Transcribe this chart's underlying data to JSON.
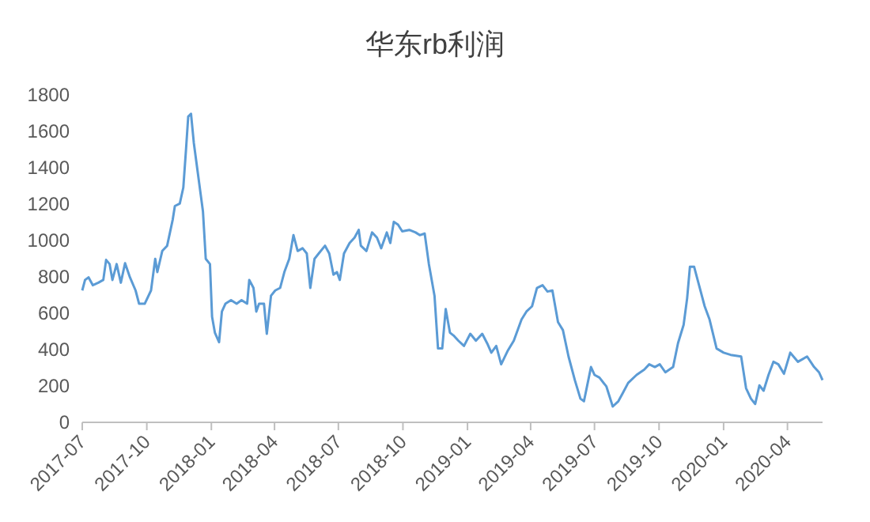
{
  "chart_data": {
    "type": "line",
    "title": "华东rb利润",
    "x": [
      "2017-07-01",
      "2017-07-05",
      "2017-07-10",
      "2017-07-16",
      "2017-07-24",
      "2017-07-31",
      "2017-08-04",
      "2017-08-09",
      "2017-08-13",
      "2017-08-19",
      "2017-08-25",
      "2017-08-31",
      "2017-09-07",
      "2017-09-15",
      "2017-09-20",
      "2017-09-28",
      "2017-10-07",
      "2017-10-13",
      "2017-10-16",
      "2017-10-23",
      "2017-10-30",
      "2017-11-07",
      "2017-11-10",
      "2017-11-17",
      "2017-11-22",
      "2017-11-26",
      "2017-11-29",
      "2017-12-03",
      "2017-12-07",
      "2017-12-12",
      "2017-12-20",
      "2017-12-24",
      "2017-12-30",
      "2018-01-02",
      "2018-01-06",
      "2018-01-12",
      "2018-01-16",
      "2018-01-21",
      "2018-01-29",
      "2018-02-06",
      "2018-02-13",
      "2018-02-21",
      "2018-02-24",
      "2018-03-02",
      "2018-03-06",
      "2018-03-10",
      "2018-03-17",
      "2018-03-21",
      "2018-03-27",
      "2018-04-02",
      "2018-04-09",
      "2018-04-15",
      "2018-04-22",
      "2018-04-28",
      "2018-05-04",
      "2018-05-11",
      "2018-05-17",
      "2018-05-22",
      "2018-05-28",
      "2018-06-03",
      "2018-06-12",
      "2018-06-18",
      "2018-06-24",
      "2018-06-29",
      "2018-07-03",
      "2018-07-09",
      "2018-07-17",
      "2018-07-24",
      "2018-07-30",
      "2018-08-02",
      "2018-08-10",
      "2018-08-18",
      "2018-08-25",
      "2018-08-31",
      "2018-09-08",
      "2018-09-13",
      "2018-09-18",
      "2018-09-24",
      "2018-09-30",
      "2018-10-10",
      "2018-10-19",
      "2018-10-25",
      "2018-11-01",
      "2018-11-07",
      "2018-11-15",
      "2018-11-20",
      "2018-11-26",
      "2018-12-01",
      "2018-12-07",
      "2018-12-12",
      "2018-12-19",
      "2018-12-27",
      "2019-01-05",
      "2019-01-13",
      "2019-01-22",
      "2019-01-29",
      "2019-02-04",
      "2019-02-11",
      "2019-02-18",
      "2019-02-27",
      "2019-03-08",
      "2019-03-19",
      "2019-03-26",
      "2019-04-03",
      "2019-04-10",
      "2019-04-18",
      "2019-04-25",
      "2019-05-02",
      "2019-05-10",
      "2019-05-17",
      "2019-05-25",
      "2019-06-03",
      "2019-06-11",
      "2019-06-16",
      "2019-06-26",
      "2019-07-01",
      "2019-07-08",
      "2019-07-18",
      "2019-07-27",
      "2019-08-04",
      "2019-08-10",
      "2019-08-18",
      "2019-08-30",
      "2019-09-10",
      "2019-09-17",
      "2019-09-25",
      "2019-10-02",
      "2019-10-10",
      "2019-10-21",
      "2019-10-28",
      "2019-11-05",
      "2019-11-10",
      "2019-11-14",
      "2019-11-20",
      "2019-11-27",
      "2019-12-05",
      "2019-12-12",
      "2019-12-22",
      "2020-01-01",
      "2020-01-11",
      "2020-01-26",
      "2020-02-02",
      "2020-02-09",
      "2020-02-15",
      "2020-02-21",
      "2020-02-27",
      "2020-03-05",
      "2020-03-12",
      "2020-03-19",
      "2020-03-27",
      "2020-04-05",
      "2020-04-16",
      "2020-04-29",
      "2020-05-09",
      "2020-05-16",
      "2020-05-21"
    ],
    "series": [
      {
        "color": "#5b9bd5",
        "values": [
          725,
          783,
          797,
          754,
          768,
          783,
          893,
          870,
          783,
          870,
          768,
          875,
          797,
          725,
          652,
          652,
          725,
          899,
          826,
          942,
          971,
          1116,
          1189,
          1203,
          1290,
          1507,
          1681,
          1696,
          1536,
          1391,
          1160,
          899,
          870,
          580,
          493,
          441,
          609,
          652,
          672,
          652,
          672,
          652,
          783,
          739,
          609,
          652,
          652,
          487,
          696,
          725,
          739,
          826,
          899,
          1029,
          942,
          957,
          928,
          739,
          899,
          928,
          971,
          928,
          812,
          826,
          783,
          928,
          986,
          1015,
          1058,
          971,
          942,
          1044,
          1015,
          957,
          1044,
          986,
          1102,
          1087,
          1050,
          1058,
          1044,
          1029,
          1038,
          870,
          696,
          406,
          406,
          623,
          493,
          478,
          449,
          420,
          487,
          449,
          487,
          435,
          383,
          420,
          319,
          391,
          449,
          565,
          609,
          638,
          739,
          754,
          719,
          725,
          551,
          507,
          362,
          232,
          130,
          116,
          304,
          261,
          246,
          197,
          87,
          116,
          159,
          217,
          261,
          290,
          319,
          304,
          319,
          275,
          304,
          435,
          536,
          681,
          855,
          855,
          754,
          638,
          565,
          406,
          383,
          371,
          362,
          188,
          130,
          101,
          203,
          174,
          261,
          333,
          319,
          267,
          383,
          333,
          362,
          304,
          275,
          232
        ]
      }
    ],
    "xlim": [
      "2017-07-01",
      "2020-05-21"
    ],
    "xticks": [
      "2017-07",
      "2017-10",
      "2018-01",
      "2018-04",
      "2018-07",
      "2018-10",
      "2019-01",
      "2019-04",
      "2019-07",
      "2019-10",
      "2020-01",
      "2020-04"
    ],
    "ylim": [
      0,
      1800
    ],
    "yticks": [
      0,
      200,
      400,
      600,
      800,
      1000,
      1200,
      1400,
      1600,
      1800
    ]
  }
}
